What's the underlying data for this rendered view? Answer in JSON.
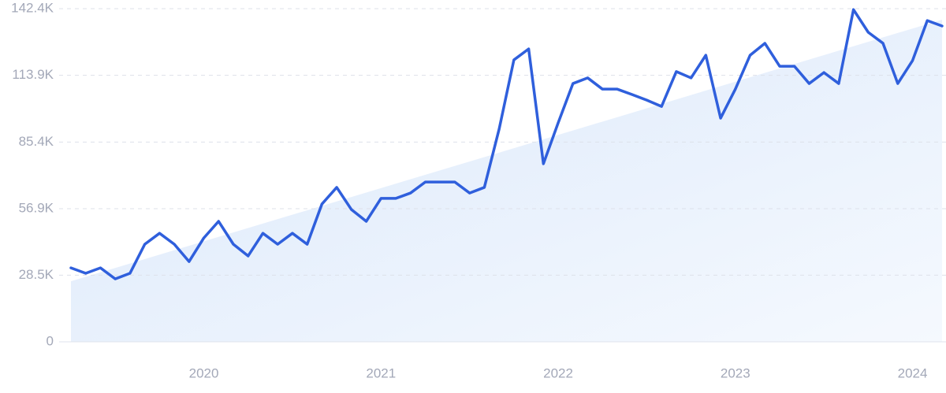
{
  "chart_data": {
    "type": "line",
    "categories": [
      null,
      null,
      null,
      null,
      null,
      null,
      null,
      null,
      null,
      "2020",
      null,
      null,
      null,
      null,
      null,
      null,
      null,
      null,
      null,
      null,
      null,
      "2021",
      null,
      null,
      null,
      null,
      null,
      null,
      null,
      null,
      null,
      null,
      null,
      "2022",
      null,
      null,
      null,
      null,
      null,
      null,
      null,
      null,
      null,
      null,
      null,
      "2023",
      null,
      null,
      null,
      null,
      null,
      null,
      null,
      null,
      null,
      null,
      null,
      "2024",
      null,
      null
    ],
    "series": [
      {
        "color": "#2f5fdc",
        "values": [
          31600,
          29300,
          31600,
          26900,
          29300,
          41700,
          46400,
          41700,
          34300,
          44400,
          51500,
          41700,
          36700,
          46400,
          41700,
          46400,
          41700,
          58900,
          66000,
          56500,
          51500,
          61300,
          61300,
          63600,
          68300,
          68300,
          68300,
          63600,
          66000,
          90900,
          120500,
          125200,
          76100,
          93600,
          110400,
          112800,
          108000,
          108000,
          105700,
          103300,
          100600,
          115500,
          112800,
          122500,
          95600,
          108000,
          122500,
          127600,
          117800,
          117800,
          110400,
          115100,
          110400,
          142000,
          132300,
          127600,
          110400,
          120200,
          137300,
          135000
        ]
      }
    ],
    "trend": [
      25900,
      137700
    ],
    "ylim": [
      0,
      142400
    ],
    "yticks": [
      0,
      {
        "value": 28500,
        "label": "28.5K"
      },
      {
        "value": 56900,
        "label": "56.9K"
      },
      {
        "value": 85400,
        "label": "85.4K"
      },
      {
        "value": 113900,
        "label": "113.9K"
      },
      {
        "value": 142400,
        "label": "142.4K"
      }
    ],
    "grid": true
  }
}
